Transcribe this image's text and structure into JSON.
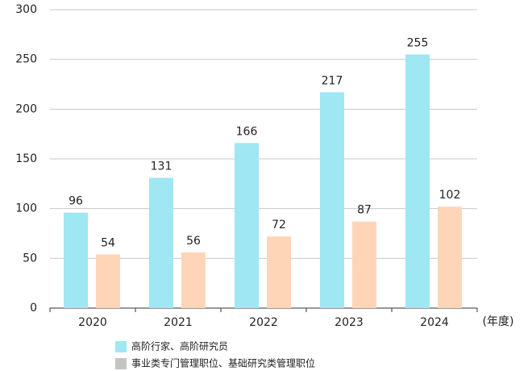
{
  "chart_data": {
    "type": "bar",
    "x_label": "(年度)",
    "categories": [
      "2020",
      "2021",
      "2022",
      "2023",
      "2024"
    ],
    "series": [
      {
        "name": "高阶行家、高阶研究员",
        "color": "#9ee7f3",
        "legend_color": "#9ee7f3",
        "values": [
          96,
          131,
          166,
          217,
          255
        ]
      },
      {
        "name": "事业类专门管理职位、基础研究类管理职位",
        "color": "#ffd5b8",
        "legend_color": "#c4c4c4",
        "values": [
          54,
          56,
          72,
          87,
          102
        ]
      }
    ],
    "ylim": [
      0,
      300
    ],
    "yticks": [
      0,
      50,
      100,
      150,
      200,
      250,
      300
    ],
    "grid": true
  }
}
